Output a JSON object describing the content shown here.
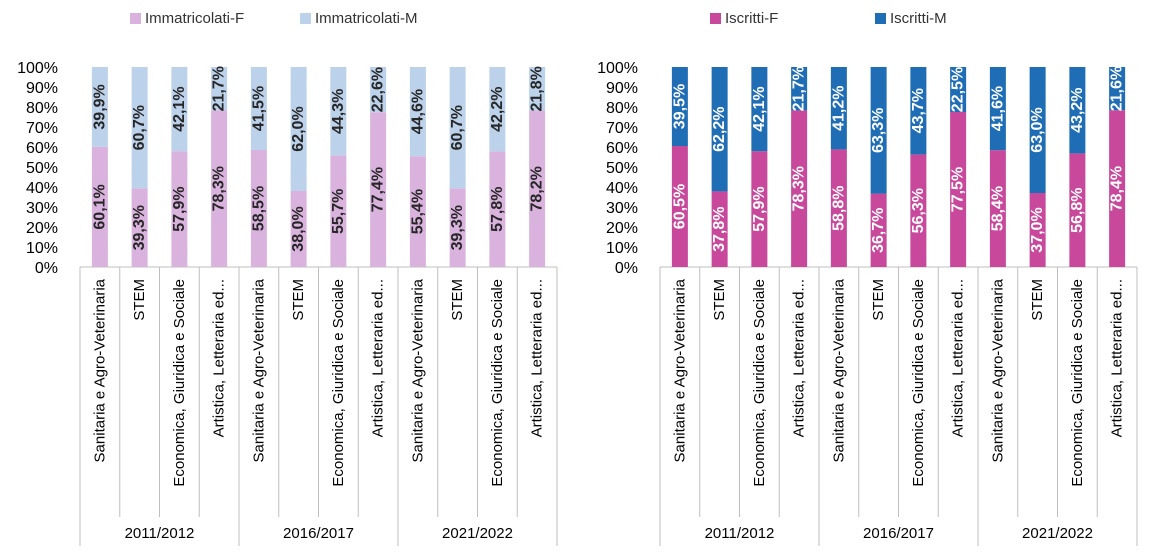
{
  "chart_data": [
    {
      "type": "bar",
      "stacked": true,
      "normalized": true,
      "groups": [
        {
          "label": "2011/2012",
          "categories": [
            "Sanitaria e Agro-Veterinaria",
            "STEM",
            "Economica, Giuridica e Sociale",
            "Artistica, Letteraria ed..."
          ]
        },
        {
          "label": "2016/2017",
          "categories": [
            "Sanitaria e Agro-Veterinaria",
            "STEM",
            "Economica, Giuridica e Sociale",
            "Artistica, Letteraria ed..."
          ]
        },
        {
          "label": "2021/2022",
          "categories": [
            "Sanitaria e Agro-Veterinaria",
            "STEM",
            "Economica, Giuridica e Sociale",
            "Artistica, Letteraria ed..."
          ]
        }
      ],
      "series": [
        {
          "name": "Immatricolati-F",
          "color": "#d9b3dd",
          "values": [
            60.1,
            39.3,
            57.9,
            78.3,
            58.5,
            38.0,
            55.7,
            77.4,
            55.4,
            39.3,
            57.8,
            78.2
          ],
          "labels": [
            "60,1%",
            "39,3%",
            "57,9%",
            "78,3%",
            "58,5%",
            "38,0%",
            "55,7%",
            "77,4%",
            "55,4%",
            "39,3%",
            "57,8%",
            "78,2%"
          ]
        },
        {
          "name": "Immatricolati-M",
          "color": "#bcd1ea",
          "values": [
            39.9,
            60.7,
            42.1,
            21.7,
            41.5,
            62.0,
            44.3,
            22.6,
            44.6,
            60.7,
            42.2,
            21.8
          ],
          "labels": [
            "39,9%",
            "60,7%",
            "42,1%",
            "21,7%",
            "41,5%",
            "62,0%",
            "44,3%",
            "22,6%",
            "44,6%",
            "60,7%",
            "42,2%",
            "21,8%"
          ]
        }
      ],
      "y_ticks": [
        "0%",
        "10%",
        "20%",
        "30%",
        "40%",
        "50%",
        "60%",
        "70%",
        "80%",
        "90%",
        "100%"
      ],
      "ylim": [
        0,
        100
      ],
      "legend_position": "top",
      "title": "",
      "xlabel": "",
      "ylabel": ""
    },
    {
      "type": "bar",
      "stacked": true,
      "normalized": true,
      "groups": [
        {
          "label": "2011/2012",
          "categories": [
            "Sanitaria e Agro-Veterinaria",
            "STEM",
            "Economica, Giuridica e Sociale",
            "Artistica, Letteraria ed..."
          ]
        },
        {
          "label": "2016/2017",
          "categories": [
            "Sanitaria e Agro-Veterinaria",
            "STEM",
            "Economica, Giuridica e Sociale",
            "Artistica, Letteraria ed..."
          ]
        },
        {
          "label": "2021/2022",
          "categories": [
            "Sanitaria e Agro-Veterinaria",
            "STEM",
            "Economica, Giuridica e Sociale",
            "Artistica, Letteraria ed..."
          ]
        }
      ],
      "series": [
        {
          "name": "Iscritti-F",
          "color": "#c8489c",
          "values": [
            60.5,
            37.8,
            57.9,
            78.3,
            58.8,
            36.7,
            56.3,
            77.5,
            58.4,
            37.0,
            56.8,
            78.4
          ],
          "labels": [
            "60,5%",
            "37,8%",
            "57,9%",
            "78,3%",
            "58,8%",
            "36,7%",
            "56,3%",
            "77,5%",
            "58,4%",
            "37,0%",
            "56,8%",
            "78,4%"
          ]
        },
        {
          "name": "Iscritti-M",
          "color": "#1f6db5",
          "values": [
            39.5,
            62.2,
            42.1,
            21.7,
            41.2,
            63.3,
            43.7,
            22.5,
            41.6,
            63.0,
            43.2,
            21.6
          ],
          "labels": [
            "39,5%",
            "62,2%",
            "42,1%",
            "21,7%",
            "41,2%",
            "63,3%",
            "43,7%",
            "22,5%",
            "41,6%",
            "63,0%",
            "43,2%",
            "21,6%"
          ]
        }
      ],
      "y_ticks": [
        "0%",
        "10%",
        "20%",
        "30%",
        "40%",
        "50%",
        "60%",
        "70%",
        "80%",
        "90%",
        "100%"
      ],
      "ylim": [
        0,
        100
      ],
      "legend_position": "top",
      "title": "",
      "xlabel": "",
      "ylabel": ""
    }
  ]
}
